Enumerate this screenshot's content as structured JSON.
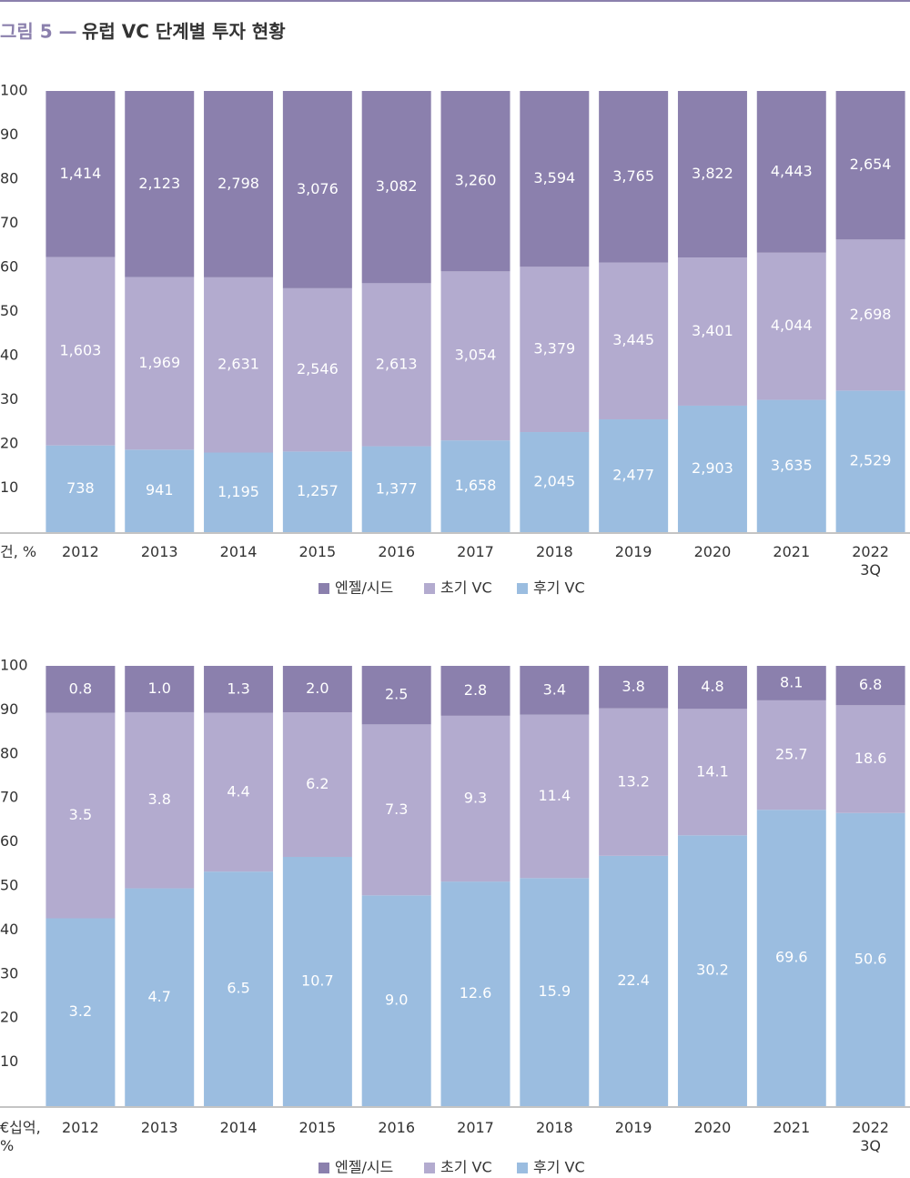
{
  "figure_label": "그림 5 —",
  "title": "유럽 VC 단계별 투자 현황",
  "chart_data": [
    {
      "type": "bar",
      "stacked": "percent",
      "y_label": "건, %",
      "categories": [
        "2012",
        "2013",
        "2014",
        "2015",
        "2016",
        "2017",
        "2018",
        "2019",
        "2020",
        "2021",
        "2022\n3Q"
      ],
      "ylim": [
        0,
        100
      ],
      "yticks": [
        10,
        20,
        30,
        40,
        50,
        60,
        70,
        80,
        90,
        100
      ],
      "legend": "bottom",
      "series": [
        {
          "name": "엔젤/시드",
          "color": "#8b80ad",
          "values": [
            1414,
            2123,
            2798,
            3076,
            3082,
            3260,
            3594,
            3765,
            3822,
            4443,
            2654
          ],
          "value_labels": [
            "1,414",
            "2,123",
            "2,798",
            "3,076",
            "3,082",
            "3,260",
            "3,594",
            "3,765",
            "3,822",
            "4,443",
            "2,654"
          ]
        },
        {
          "name": "초기 VC",
          "color": "#b3abcf",
          "values": [
            1603,
            1969,
            2631,
            2546,
            2613,
            3054,
            3379,
            3445,
            3401,
            4044,
            2698
          ],
          "value_labels": [
            "1,603",
            "1,969",
            "2,631",
            "2,546",
            "2,613",
            "3,054",
            "3,379",
            "3,445",
            "3,401",
            "4,044",
            "2,698"
          ]
        },
        {
          "name": "후기 VC",
          "color": "#9bbde0",
          "values": [
            738,
            941,
            1195,
            1257,
            1377,
            1658,
            2045,
            2477,
            2903,
            3635,
            2529
          ],
          "value_labels": [
            "738",
            "941",
            "1,195",
            "1,257",
            "1,377",
            "1,658",
            "2,045",
            "2,477",
            "2,903",
            "3,635",
            "2,529"
          ]
        }
      ]
    },
    {
      "type": "bar",
      "stacked": "percent",
      "y_label": "€십억,\n%",
      "categories": [
        "2012",
        "2013",
        "2014",
        "2015",
        "2016",
        "2017",
        "2018",
        "2019",
        "2020",
        "2021",
        "2022\n3Q"
      ],
      "ylim": [
        0,
        100
      ],
      "yticks": [
        10,
        20,
        30,
        40,
        50,
        60,
        70,
        80,
        90,
        100
      ],
      "legend": "bottom",
      "series": [
        {
          "name": "엔젤/시드",
          "color": "#8b80ad",
          "values": [
            0.8,
            1.0,
            1.3,
            2.0,
            2.5,
            2.8,
            3.4,
            3.8,
            4.8,
            8.1,
            6.8
          ],
          "value_labels": [
            "0.8",
            "1.0",
            "1.3",
            "2.0",
            "2.5",
            "2.8",
            "3.4",
            "3.8",
            "4.8",
            "8.1",
            "6.8"
          ]
        },
        {
          "name": "초기 VC",
          "color": "#b3abcf",
          "values": [
            3.5,
            3.8,
            4.4,
            6.2,
            7.3,
            9.3,
            11.4,
            13.2,
            14.1,
            25.7,
            18.6
          ],
          "value_labels": [
            "3.5",
            "3.8",
            "4.4",
            "6.2",
            "7.3",
            "9.3",
            "11.4",
            "13.2",
            "14.1",
            "25.7",
            "18.6"
          ]
        },
        {
          "name": "후기 VC",
          "color": "#9bbde0",
          "values": [
            3.2,
            4.7,
            6.5,
            10.7,
            9.0,
            12.6,
            15.9,
            22.4,
            30.2,
            69.6,
            50.6
          ],
          "value_labels": [
            "3.2",
            "4.7",
            "6.5",
            "10.7",
            "9.0",
            "12.6",
            "15.9",
            "22.4",
            "30.2",
            "69.6",
            "50.6"
          ]
        }
      ]
    }
  ]
}
